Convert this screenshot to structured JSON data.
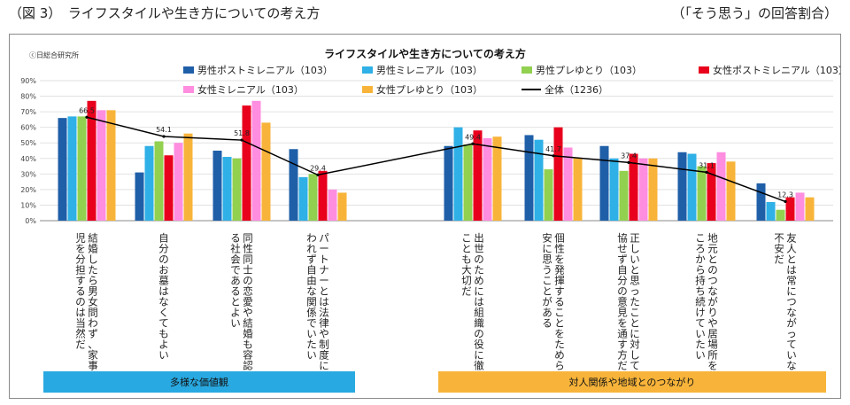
{
  "header": {
    "figure_label": "（図 3）　ライフスタイルや生き方についての考え方",
    "note": "（「そう思う」の回答割合）"
  },
  "chart_data": {
    "type": "bar",
    "title": "ライフスタイルや生き方についての考え方",
    "source": "ⓒ日総合研究所",
    "ylim": [
      0,
      90
    ],
    "yticks": [
      "0%",
      "10%",
      "20%",
      "30%",
      "40%",
      "50%",
      "60%",
      "70%",
      "80%",
      "90%"
    ],
    "grid": true,
    "legend_position": "top",
    "categories": [
      "結婚したら男女問わず、家事や育児を分担するのは当然だ",
      "自分のお墓はなくてもよい",
      "同性同士の恋愛や結婚も容認できる社会であるとよい",
      "パートナーとは法律や制度にとらわれず自由な関係でいたい",
      "出世のためには組織の役に徹することも大切だ",
      "個性を発揮することをためらい不安に思うことがある",
      "正しいと思ったことに対しては妥協せず自分の意見を通す方だ",
      "地元とのつながりや居場所を若いころから持ち続けていたい",
      "友人とは常につながっていないと不安だ"
    ],
    "series": [
      {
        "name": "男性ポストミレニアル（103）",
        "color": "#1f5fa8",
        "values": [
          66,
          31,
          45,
          46,
          48,
          55,
          48,
          44,
          24
        ]
      },
      {
        "name": "男性ミレニアル（103）",
        "color": "#2fb0e6",
        "values": [
          67,
          48,
          41,
          28,
          60,
          52,
          40,
          43,
          12
        ]
      },
      {
        "name": "男性プレゆとり（103）",
        "color": "#92d050",
        "values": [
          67,
          51,
          40,
          30,
          49,
          33,
          32,
          35,
          7
        ]
      },
      {
        "name": "女性ポストミレニアル（103）",
        "color": "#e8001c",
        "values": [
          77,
          42,
          74,
          32,
          58,
          60,
          43,
          37,
          15
        ]
      },
      {
        "name": "女性ミレニアル（103）",
        "color": "#ff8de0",
        "values": [
          71,
          50,
          77,
          20,
          53,
          47,
          40,
          44,
          18
        ]
      },
      {
        "name": "女性プレゆとり（103）",
        "color": "#f8b43a",
        "values": [
          71,
          56,
          63,
          18,
          54,
          40,
          40,
          38,
          15
        ]
      }
    ],
    "total_line": {
      "name": "全体（1236）",
      "color": "#000000",
      "values": [
        66.5,
        54.1,
        51.8,
        29.4,
        49.4,
        41.7,
        37.4,
        31.1,
        12.3
      ],
      "labels": [
        "66.5",
        "54.1",
        "51.8",
        "29.4",
        "49.4",
        "41.7",
        "37.4",
        "31.1",
        "12.3"
      ]
    },
    "groups": [
      {
        "label": "多様な価値観",
        "color": "#29a9e1"
      },
      {
        "label": "対人関係や地域とのつながり",
        "color": "#f8b43a"
      }
    ]
  }
}
